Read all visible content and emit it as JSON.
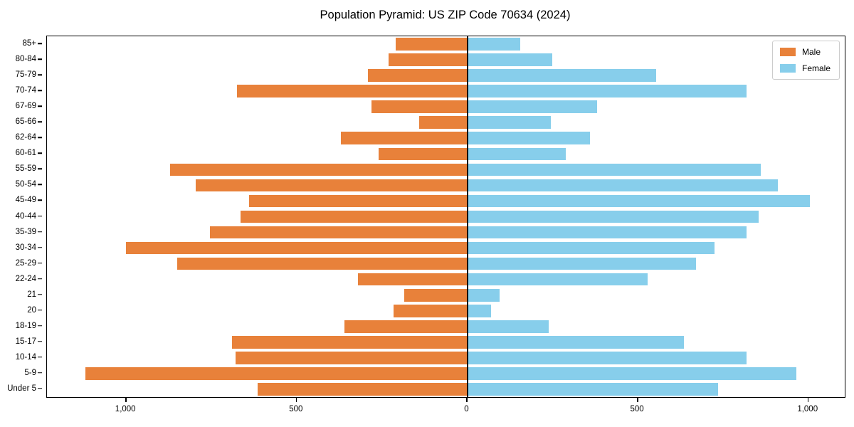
{
  "title": "Population Pyramid: US ZIP Code 70634 (2024)",
  "colors": {
    "male": "#e8813a",
    "female": "#87ceeb",
    "axis": "#000000",
    "legend_border": "#cccccc",
    "background": "#ffffff"
  },
  "legend": {
    "male_label": "Male",
    "female_label": "Female",
    "position": "upper right"
  },
  "chart_data": {
    "type": "bar",
    "subtype": "population-pyramid",
    "title": "Population Pyramid: US ZIP Code 70634 (2024)",
    "categories": [
      "85+",
      "80-84",
      "75-79",
      "70-74",
      "67-69",
      "65-66",
      "62-64",
      "60-61",
      "55-59",
      "50-54",
      "45-49",
      "40-44",
      "35-39",
      "30-34",
      "25-29",
      "22-24",
      "21",
      "20",
      "18-19",
      "15-17",
      "10-14",
      "5-9",
      "Under 5"
    ],
    "series": [
      {
        "name": "Male",
        "side": "left",
        "color": "#e8813a",
        "values": [
          210,
          230,
          290,
          675,
          280,
          140,
          370,
          260,
          870,
          795,
          640,
          665,
          755,
          1000,
          850,
          320,
          185,
          215,
          360,
          690,
          680,
          1120,
          615
        ]
      },
      {
        "name": "Female",
        "side": "right",
        "color": "#87ceeb",
        "values": [
          155,
          250,
          555,
          820,
          380,
          245,
          360,
          290,
          860,
          910,
          1005,
          855,
          820,
          725,
          670,
          530,
          95,
          70,
          240,
          635,
          820,
          965,
          735
        ]
      }
    ],
    "x_ticks": [
      {
        "label": "1,000",
        "value": -1000
      },
      {
        "label": "500",
        "value": -500
      },
      {
        "label": "0",
        "value": 0
      },
      {
        "label": "500",
        "value": 500
      },
      {
        "label": "1,000",
        "value": 1000
      }
    ],
    "xlim": [
      -1232,
      1107
    ],
    "grid": false,
    "legend_position": "upper right",
    "bar_relative_height": 0.8
  }
}
